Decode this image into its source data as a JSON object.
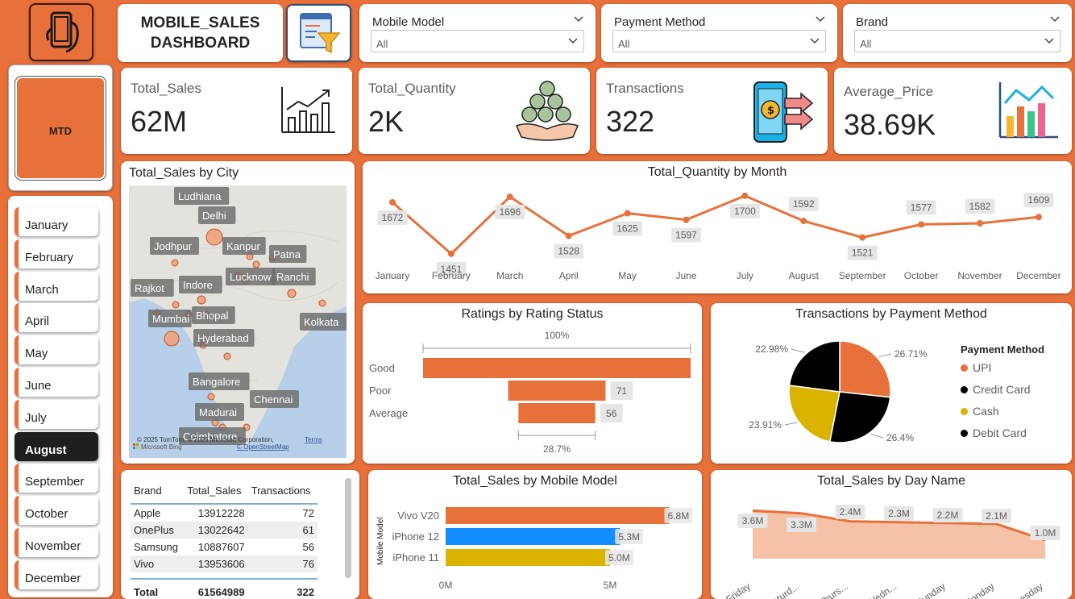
{
  "header": {
    "title_line1": "MOBILE_SALES",
    "title_line2": "DASHBOARD"
  },
  "slicers": [
    {
      "label": "Mobile Model",
      "value": "All"
    },
    {
      "label": "Payment Method",
      "value": "All"
    },
    {
      "label": "Brand",
      "value": "All"
    }
  ],
  "mtd_button": "MTD",
  "months": [
    "January",
    "February",
    "March",
    "April",
    "May",
    "June",
    "July",
    "August",
    "September",
    "October",
    "November",
    "December"
  ],
  "selected_month": "August",
  "kpis": [
    {
      "label": "Total_Sales",
      "value": "62M",
      "icon": "growth-chart-icon"
    },
    {
      "label": "Total_Quantity",
      "value": "2K",
      "icon": "money-bags-icon"
    },
    {
      "label": "Transactions",
      "value": "322",
      "icon": "mobile-payment-icon"
    },
    {
      "label": "Average_Price",
      "value": "38.69K",
      "icon": "bar-chart-icon"
    }
  ],
  "map": {
    "title": "Total_Sales by City",
    "cities": [
      "Ludhiana",
      "Delhi",
      "Jodhpur",
      "Kanpur",
      "Patna",
      "Lucknow",
      "Ranchi",
      "Rajkot",
      "Indore",
      "Bhopal",
      "Mumbai",
      "Kolkata",
      "Hyderabad",
      "Bangalore",
      "Chennai",
      "Madurai",
      "Coimbatore"
    ],
    "attribution": "© 2025 TomTom, © 2025 Microsoft Corporation,",
    "terms": "Terms",
    "osm": "© OpenStreetMap",
    "bing": "Microsoft Bing"
  },
  "chart_data": [
    {
      "type": "line",
      "title": "Total_Quantity by Month",
      "categories": [
        "January",
        "February",
        "March",
        "April",
        "May",
        "June",
        "July",
        "August",
        "September",
        "October",
        "November",
        "December"
      ],
      "values": [
        1672,
        1451,
        1696,
        1528,
        1625,
        1597,
        1700,
        1592,
        1521,
        1577,
        1582,
        1609
      ],
      "color": "#e8703a"
    },
    {
      "type": "bar",
      "title": "Ratings by Rating Status",
      "categories": [
        "Good",
        "Poor",
        "Average"
      ],
      "values": [
        195,
        71,
        56
      ],
      "value_labels": [
        "",
        "71",
        "56"
      ],
      "top_label": "100%",
      "bottom_label": "28.7%",
      "color": "#e8703a"
    },
    {
      "type": "pie",
      "title": "Transactions by Payment Method",
      "legend_title": "Payment Method",
      "categories": [
        "UPI",
        "Debit Card",
        "Cash",
        "Credit Card"
      ],
      "values": [
        26.71,
        26.4,
        23.91,
        22.98
      ],
      "labels": [
        "26.71%",
        "26.4%",
        "23.91%",
        "22.98%"
      ],
      "legend": [
        "UPI",
        "Credit Card",
        "Cash",
        "Debit Card"
      ],
      "colors": {
        "UPI": "#e8703a",
        "Credit Card": "#000000",
        "Cash": "#d9b300",
        "Debit Card": "#000000"
      }
    },
    {
      "type": "bar",
      "title": "Total_Sales by Mobile Model",
      "ylabel": "Mobile Model",
      "categories": [
        "Vivo V20",
        "iPhone 12",
        "iPhone 11"
      ],
      "values": [
        6.8,
        5.3,
        5.0
      ],
      "value_labels": [
        "6.8M",
        "5.3M",
        "5.0M"
      ],
      "xticks": [
        "0M",
        "5M"
      ],
      "colors": [
        "#e8703a",
        "#118dff",
        "#d9b300"
      ]
    },
    {
      "type": "area",
      "title": "Total_Sales by Day Name",
      "categories": [
        "Friday",
        "Saturd...",
        "Thurs...",
        "Wedn...",
        "Sunday",
        "Monday",
        "Tuesday"
      ],
      "values": [
        3.6,
        3.3,
        2.4,
        2.3,
        2.2,
        2.1,
        1.0
      ],
      "value_labels": [
        "3.6M",
        "3.3M",
        "2.4M",
        "2.3M",
        "2.2M",
        "2.1M",
        "1.0M"
      ],
      "color": "#e8703a"
    }
  ],
  "brand_table": {
    "headers": [
      "Brand",
      "Total_Sales",
      "Transactions"
    ],
    "rows": [
      [
        "Apple",
        "13912228",
        "72"
      ],
      [
        "OnePlus",
        "13022642",
        "61"
      ],
      [
        "Samsung",
        "10887607",
        "56"
      ],
      [
        "Vivo",
        "13953606",
        "76"
      ]
    ],
    "total": [
      "Total",
      "61564989",
      "322"
    ]
  }
}
